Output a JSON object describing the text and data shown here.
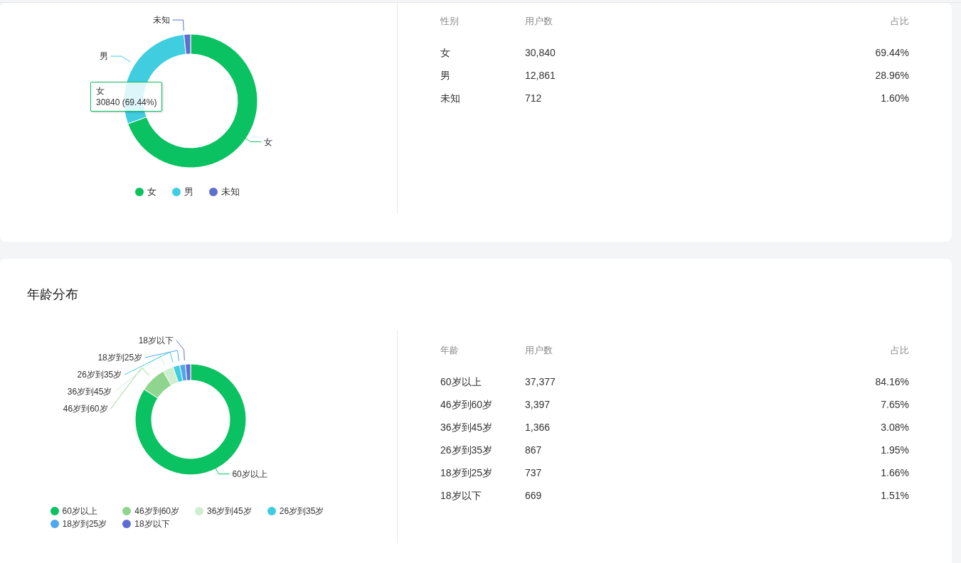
{
  "chart_data": [
    {
      "type": "donut",
      "categories": [
        "女",
        "男",
        "未知"
      ],
      "values": [
        69.44,
        28.96,
        1.6
      ],
      "colors": [
        "#0ac261",
        "#40cde0",
        "#5f6fd1"
      ],
      "legend": "bottom",
      "annotations": [
        "性别",
        "用户数",
        "占比",
        "30,840",
        "12,861",
        "712",
        "69.44%",
        "28.96%",
        "1.60%",
        "女\n30840 (69.44%)"
      ]
    },
    {
      "type": "donut",
      "title": "年龄分布",
      "categories": [
        "60岁以上",
        "46岁到60岁",
        "36岁到45岁",
        "26岁到35岁",
        "18岁到25岁",
        "18岁以下"
      ],
      "values": [
        84.16,
        7.65,
        3.08,
        1.95,
        1.66,
        1.51
      ],
      "colors": [
        "#0ac261",
        "#8fd58d",
        "#cdeecf",
        "#40cde0",
        "#4fa8ee",
        "#5f6fd1"
      ],
      "legend": "bottom",
      "annotations": [
        "年龄",
        "用户数",
        "占比",
        "37,377",
        "3,397",
        "1,366",
        "867",
        "737",
        "669",
        "84.16%",
        "7.65%",
        "3.08%",
        "1.95%",
        "1.66%",
        "1.51%"
      ]
    }
  ]
}
